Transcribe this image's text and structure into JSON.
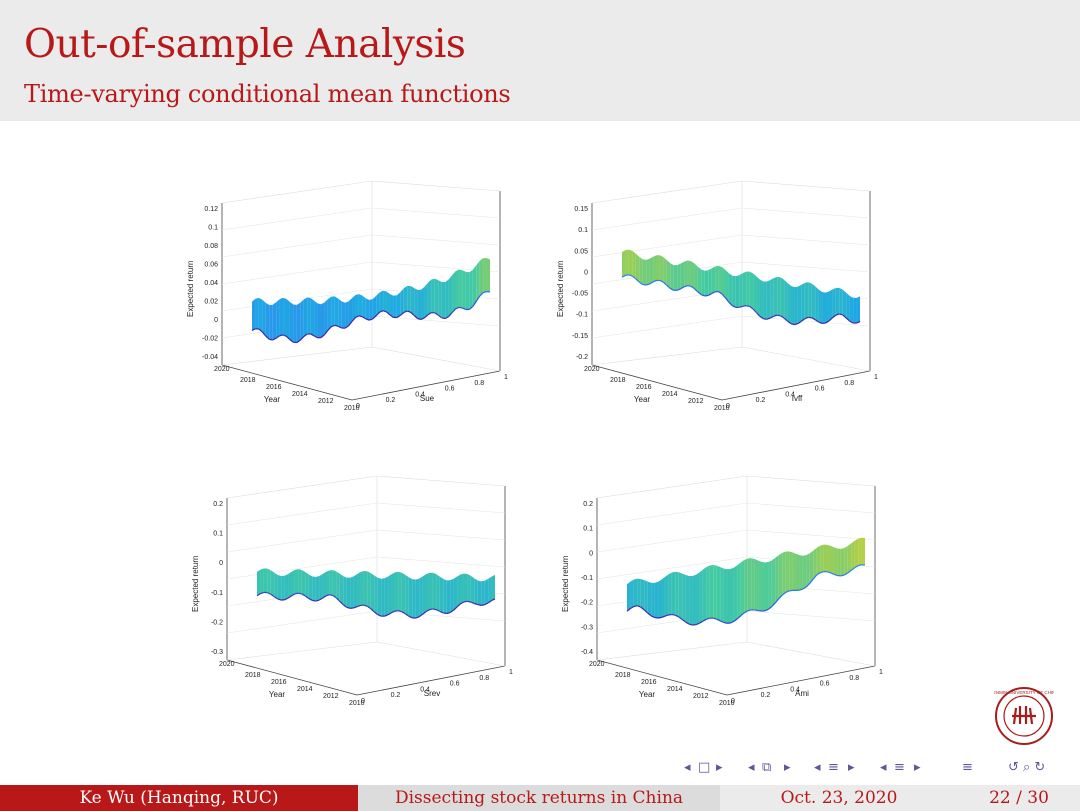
{
  "title": "Out-of-sample Analysis",
  "subtitle": "Time-varying conditional mean functions",
  "footer": {
    "author": "Ke Wu  (Hanqing, RUC)",
    "talk": "Dissecting stock returns in China",
    "date": "Oct. 23, 2020",
    "page": "22 / 30"
  },
  "colors": {
    "title": "#b81818",
    "footer_author_bg": "#b81818",
    "footer_talk_bg": "#dcdcdc",
    "footer_date_bg": "#ebebeb"
  },
  "nav_icons": [
    "nav-prev-frame",
    "nav-frame",
    "nav-next-frame",
    "nav-prev-subsection",
    "nav-subsection",
    "nav-next-subsection",
    "nav-prev-section",
    "nav-section",
    "nav-next-section",
    "nav-prev-doc",
    "nav-doc",
    "nav-next-doc",
    "nav-outline",
    "nav-undo-search"
  ],
  "chart_data": [
    {
      "type": "surface",
      "zlabel": "Expected return",
      "ylabel": "Year",
      "xlabel": "Sue",
      "zticks": [
        "0.12",
        "0.1",
        "0.08",
        "0.06",
        "0.04",
        "0.02",
        "0",
        "-0.02",
        "-0.04"
      ],
      "year_ticks": [
        "2020",
        "2018",
        "2016",
        "2014",
        "2012",
        "2010"
      ],
      "x_ticks": [
        "0",
        "0.2",
        "0.4",
        "0.6",
        "0.8",
        "1"
      ],
      "zlim": [
        -0.04,
        0.12
      ]
    },
    {
      "type": "surface",
      "zlabel": "Expected return",
      "ylabel": "Year",
      "xlabel": "Ivff",
      "zticks": [
        "0.15",
        "0.1",
        "0.05",
        "0",
        "-0.05",
        "-0.1",
        "-0.15",
        "-0.2"
      ],
      "year_ticks": [
        "2020",
        "2018",
        "2016",
        "2014",
        "2012",
        "2010"
      ],
      "x_ticks": [
        "0",
        "0.2",
        "0.4",
        "0.6",
        "0.8",
        "1"
      ],
      "zlim": [
        -0.2,
        0.15
      ]
    },
    {
      "type": "surface",
      "zlabel": "Expected return",
      "ylabel": "Year",
      "xlabel": "Srev",
      "zticks": [
        "0.2",
        "0.1",
        "0",
        "-0.1",
        "-0.2",
        "-0.3"
      ],
      "year_ticks": [
        "2020",
        "2018",
        "2016",
        "2014",
        "2012",
        "2010"
      ],
      "x_ticks": [
        "0",
        "0.2",
        "0.4",
        "0.6",
        "0.8",
        "1"
      ],
      "zlim": [
        -0.3,
        0.2
      ]
    },
    {
      "type": "surface",
      "zlabel": "Expected return",
      "ylabel": "Year",
      "xlabel": "Ami",
      "zticks": [
        "0.2",
        "0.1",
        "0",
        "-0.1",
        "-0.2",
        "-0.3",
        "-0.4"
      ],
      "year_ticks": [
        "2020",
        "2018",
        "2016",
        "2014",
        "2012",
        "2010"
      ],
      "x_ticks": [
        "0",
        "0.2",
        "0.4",
        "0.6",
        "0.8",
        "1"
      ],
      "zlim": [
        -0.4,
        0.2
      ]
    }
  ]
}
